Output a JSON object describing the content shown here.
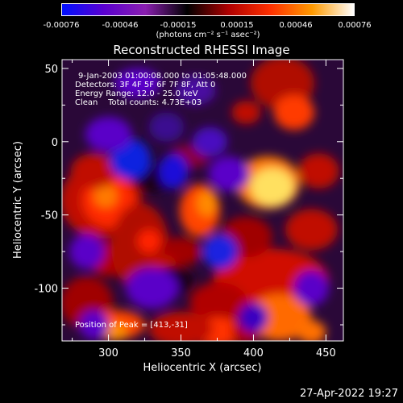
{
  "colorbar": {
    "ticks": [
      "-0.00076",
      "-0.00046",
      "-0.00015",
      "0.00015",
      "0.00046",
      "0.00076"
    ],
    "units": "(photons cm⁻² s⁻¹ asec⁻²)"
  },
  "chart_data": {
    "type": "heatmap",
    "title": "Reconstructed RHESSI Image",
    "xlabel": "Heliocentric X (arcsec)",
    "ylabel": "Heliocentric Y (arcsec)",
    "xlim": [
      268,
      462
    ],
    "ylim": [
      -136,
      56
    ],
    "xticks": [
      300,
      350,
      400,
      450
    ],
    "yticks": [
      50,
      0,
      -50,
      -100
    ],
    "colorscale": [
      "#0010ff",
      "#5a00d0",
      "#8a1fb0",
      "#000000",
      "#b00000",
      "#ff3000",
      "#ff9a00",
      "#ffffff"
    ],
    "clim": [
      -0.00076,
      0.00076
    ],
    "peak": [
      413,
      -31
    ],
    "annotations": {
      "time": "9-Jan-2003 01:00:08.000 to 01:05:48.000",
      "detectors": "Detectors: 3F 4F 5F 6F 7F 8F, Att 0",
      "energy": "Energy Range: 12.0 - 25.0 keV",
      "clean": "Clean    Total counts: 4.73E+03",
      "peak": "Position of Peak = [413,-31]"
    }
  },
  "timestamp": "27-Apr-2022 19:27"
}
